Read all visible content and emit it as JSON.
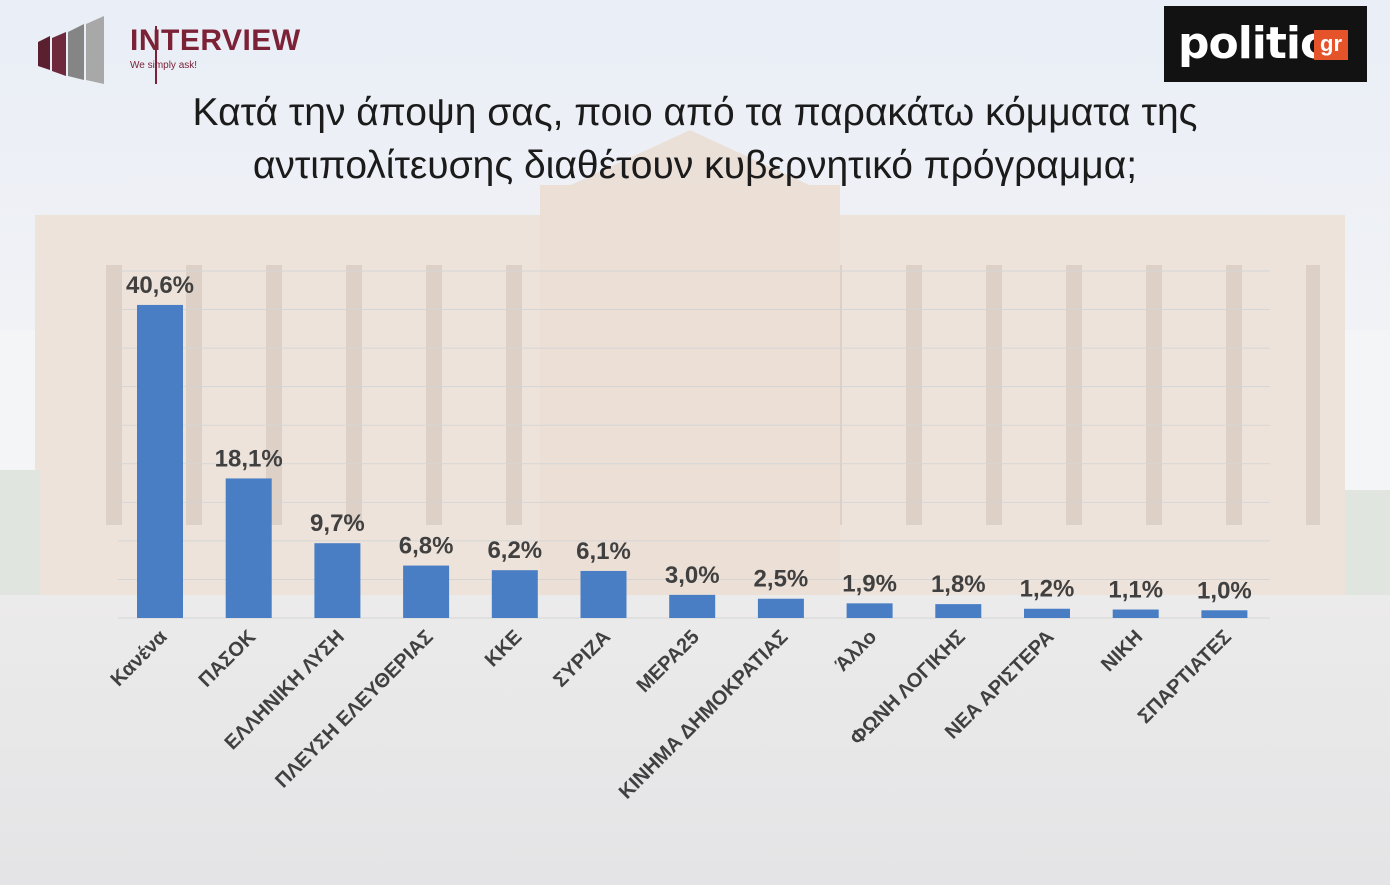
{
  "logos": {
    "interview": {
      "name": "INTERVIEW",
      "tagline": "We simply ask!",
      "color": "#7c2237"
    },
    "politic": {
      "name": "politic",
      "suffix": "gr",
      "accent": "#e5532a"
    }
  },
  "colors": {
    "bar": "#4a7ec4",
    "grid": "#d5d5d5",
    "text": "#404040"
  },
  "chart_data": {
    "type": "bar",
    "title": "Κατά την άποψη σας, ποιο από τα παρακάτω κόμματα της αντιπολίτευσης διαθέτουν κυβερνητικό πρόγραμμα;",
    "categories": [
      "Κανένα",
      "ΠΑΣΟΚ",
      "ΕΛΛΗΝΙΚΗ ΛΥΣΗ",
      "ΠΛΕΥΣΗ ΕΛΕΥΘΕΡΙΑΣ",
      "ΚΚΕ",
      "ΣΥΡΙΖΑ",
      "ΜΕΡΑ25",
      "ΚΙΝΗΜΑ ΔΗΜΟΚΡΑΤΙΑΣ",
      "Άλλο",
      "ΦΩΝΗ ΛΟΓΙΚΗΣ",
      "ΝΕΑ ΑΡΙΣΤΕΡΑ",
      "ΝΙΚΗ",
      "ΣΠΑΡΤΙΑΤΕΣ"
    ],
    "values": [
      40.6,
      18.1,
      9.7,
      6.8,
      6.2,
      6.1,
      3.0,
      2.5,
      1.9,
      1.8,
      1.2,
      1.1,
      1.0
    ],
    "value_labels": [
      "40,6%",
      "18,1%",
      "9,7%",
      "6,8%",
      "6,2%",
      "6,1%",
      "3,0%",
      "2,5%",
      "1,9%",
      "1,8%",
      "1,2%",
      "1,1%",
      "1,0%"
    ],
    "ylim": [
      0,
      45
    ],
    "grid": true,
    "xlabel": "",
    "ylabel": ""
  }
}
